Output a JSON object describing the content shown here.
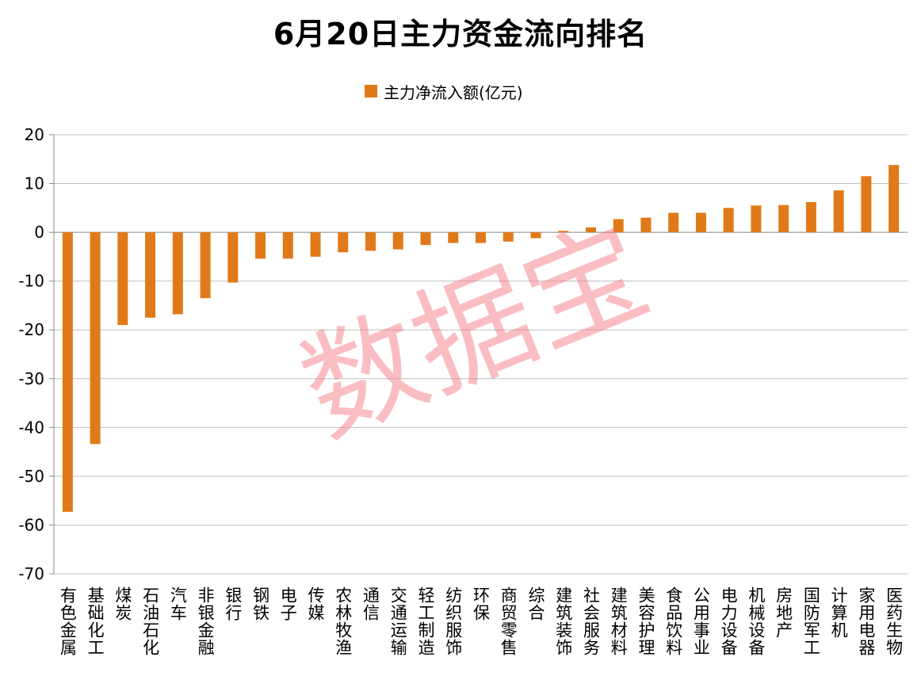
{
  "colors": {
    "bar": "#E07A18",
    "grid": "#BFBFBF",
    "axis": "#888888",
    "text": "#000000",
    "watermark": "#F46E78"
  },
  "watermark": "数据宝",
  "chart_data": {
    "type": "bar",
    "title": "6月20日主力资金流向排名",
    "xlabel": "",
    "ylabel": "",
    "ylim": [
      -70,
      20
    ],
    "yticks": [
      20,
      10,
      0,
      -10,
      -20,
      -30,
      -40,
      -50,
      -60,
      -70
    ],
    "grid": true,
    "legend_position": "top-center",
    "categories": [
      "有色金属",
      "基础化工",
      "煤炭",
      "石油石化",
      "汽车",
      "非银金融",
      "银行",
      "钢铁",
      "电子",
      "传媒",
      "农林牧渔",
      "通信",
      "交通运输",
      "轻工制造",
      "纺织服饰",
      "环保",
      "商贸零售",
      "综合",
      "建筑装饰",
      "社会服务",
      "建筑材料",
      "美容护理",
      "食品饮料",
      "公用事业",
      "电力设备",
      "机械设备",
      "房地产",
      "国防军工",
      "计算机",
      "家用电器",
      "医药生物"
    ],
    "series": [
      {
        "name": "主力净流入额(亿元)",
        "values": [
          -57.3,
          -43.4,
          -19.0,
          -17.5,
          -16.8,
          -13.5,
          -10.3,
          -5.4,
          -5.4,
          -5.0,
          -4.1,
          -3.8,
          -3.5,
          -2.6,
          -2.2,
          -2.2,
          -1.9,
          -1.2,
          0.3,
          1.0,
          2.7,
          3.0,
          4.0,
          4.0,
          5.0,
          5.5,
          5.6,
          6.2,
          8.6,
          11.5,
          13.8
        ]
      }
    ]
  }
}
